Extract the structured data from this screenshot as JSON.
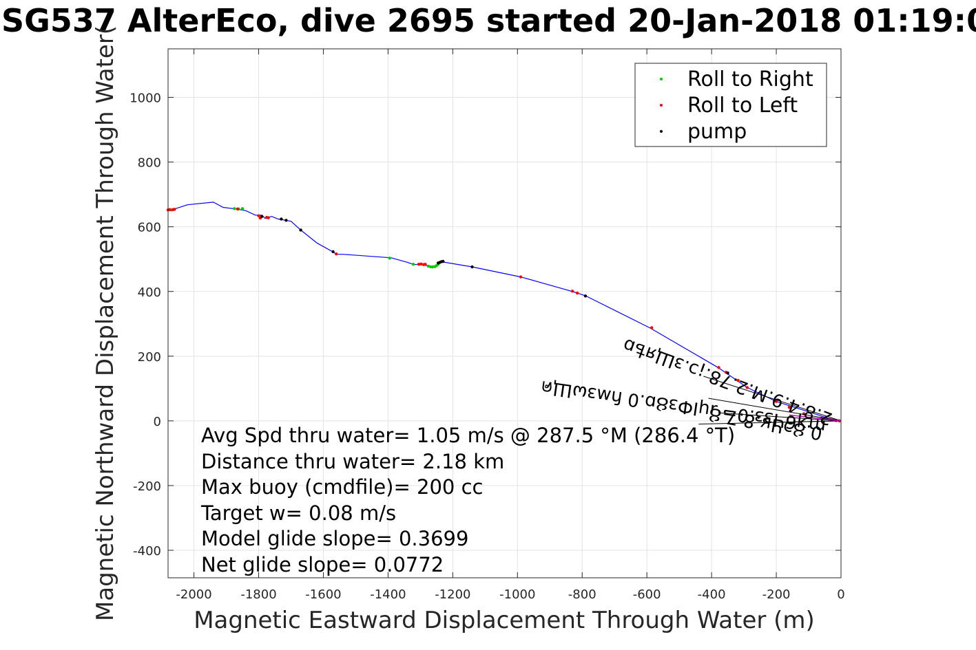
{
  "chart_data": {
    "type": "line",
    "title": "SG537 AlterEco, dive 2695 started 20-Jan-2018 01:19:0",
    "xlabel": "Magnetic Eastward Displacement Through Water (m)",
    "ylabel": "Magnetic Northward Displacement Through Water(",
    "xlim": [
      -2080,
      0
    ],
    "ylim": [
      -485,
      1150
    ],
    "xticks": [
      -2000,
      -1800,
      -1600,
      -1400,
      -1200,
      -1000,
      -800,
      -600,
      -400,
      -200,
      0
    ],
    "yticks": [
      -400,
      -200,
      0,
      200,
      400,
      600,
      800,
      1000
    ],
    "xtick_labels": [
      "-2000",
      "-1800",
      "-1600",
      "-1400",
      "-1200",
      "-1000",
      "-800",
      "-600",
      "-400",
      "-200",
      "0"
    ],
    "ytick_labels": [
      "-400",
      "-200",
      "0",
      "200",
      "400",
      "600",
      "800",
      "1000"
    ],
    "grid": true,
    "legend_position": "top-right",
    "legend": [
      {
        "label": "Roll to Right",
        "color": "#00cc00"
      },
      {
        "label": "Roll to Left",
        "color": "#ff0000"
      },
      {
        "label": "pump",
        "color": "#000000"
      }
    ],
    "track": {
      "color": "#0000ff",
      "x": [
        -2080,
        -2060,
        -2020,
        -1940,
        -1910,
        -1870,
        -1840,
        -1810,
        -1790,
        -1780,
        -1760,
        -1740,
        -1700,
        -1670,
        -1620,
        -1570,
        -1560,
        -1540,
        -1390,
        -1340,
        -1320,
        -1300,
        -1280,
        -1260,
        -1245,
        -1235,
        -1140,
        -990,
        -830,
        -790,
        -590,
        -380,
        -290,
        -200,
        -100,
        -40,
        0
      ],
      "y": [
        652,
        655,
        668,
        676,
        660,
        655,
        650,
        636,
        636,
        626,
        632,
        624,
        617,
        590,
        550,
        522,
        515,
        515,
        504,
        490,
        483,
        484,
        480,
        476,
        485,
        492,
        476,
        445,
        400,
        387,
        287,
        165,
        103,
        60,
        28,
        8,
        0
      ]
    },
    "roll_right": {
      "x": [
        -2070,
        -1875,
        -1862,
        -1850,
        -1395,
        -1322,
        -1275,
        -1268,
        -1262,
        -1255,
        -1250,
        -1245
      ],
      "y": [
        652,
        656,
        655,
        656,
        503,
        484,
        478,
        476,
        476,
        477,
        480,
        484
      ]
    },
    "roll_left": {
      "x": [
        -2080,
        -2075,
        -2065,
        -2060,
        -1865,
        -1800,
        -1795,
        -1775,
        -1770,
        -1560,
        -1305,
        -1298,
        -1290,
        -1285,
        -990,
        -830,
        -815,
        -585,
        -378,
        -355,
        -318,
        -290,
        -200,
        -160,
        -115,
        -60,
        -30,
        -15,
        -5
      ],
      "y": [
        652,
        653,
        653,
        654,
        655,
        634,
        627,
        629,
        628,
        516,
        484,
        485,
        483,
        484,
        445,
        401,
        395,
        288,
        165,
        150,
        125,
        103,
        60,
        42,
        22,
        8,
        3,
        1,
        0
      ]
    },
    "pump": {
      "x": [
        -1790,
        -1730,
        -1715,
        -1670,
        -1570,
        -1245,
        -1240,
        -1235,
        -1230,
        -1140,
        -790,
        -350
      ],
      "y": [
        632,
        624,
        620,
        590,
        523,
        488,
        490,
        492,
        493,
        476,
        386,
        148
      ]
    },
    "annotations": [
      "Avg Spd thru water=  1.05 m/s @ 287.5 °M (286.4 °T)",
      "Distance thru water=  2.18 km",
      "Max buoy (cmdfile)= 200 cc",
      "Target w= 0.08 m/s",
      "Model glide slope= 0.3699",
      "Net glide slope= 0.0772"
    ],
    "rotated_labels": [
      "mʞ6Чзз.0= ɹɥІФзȢɒ.0 ɦʍзωЩค",
      "2.8.4.9.M.2.78.¡ↄ.зЩяѣɒ",
      "0.ȢↄЧʁ.8.7.Ȣ"
    ]
  }
}
